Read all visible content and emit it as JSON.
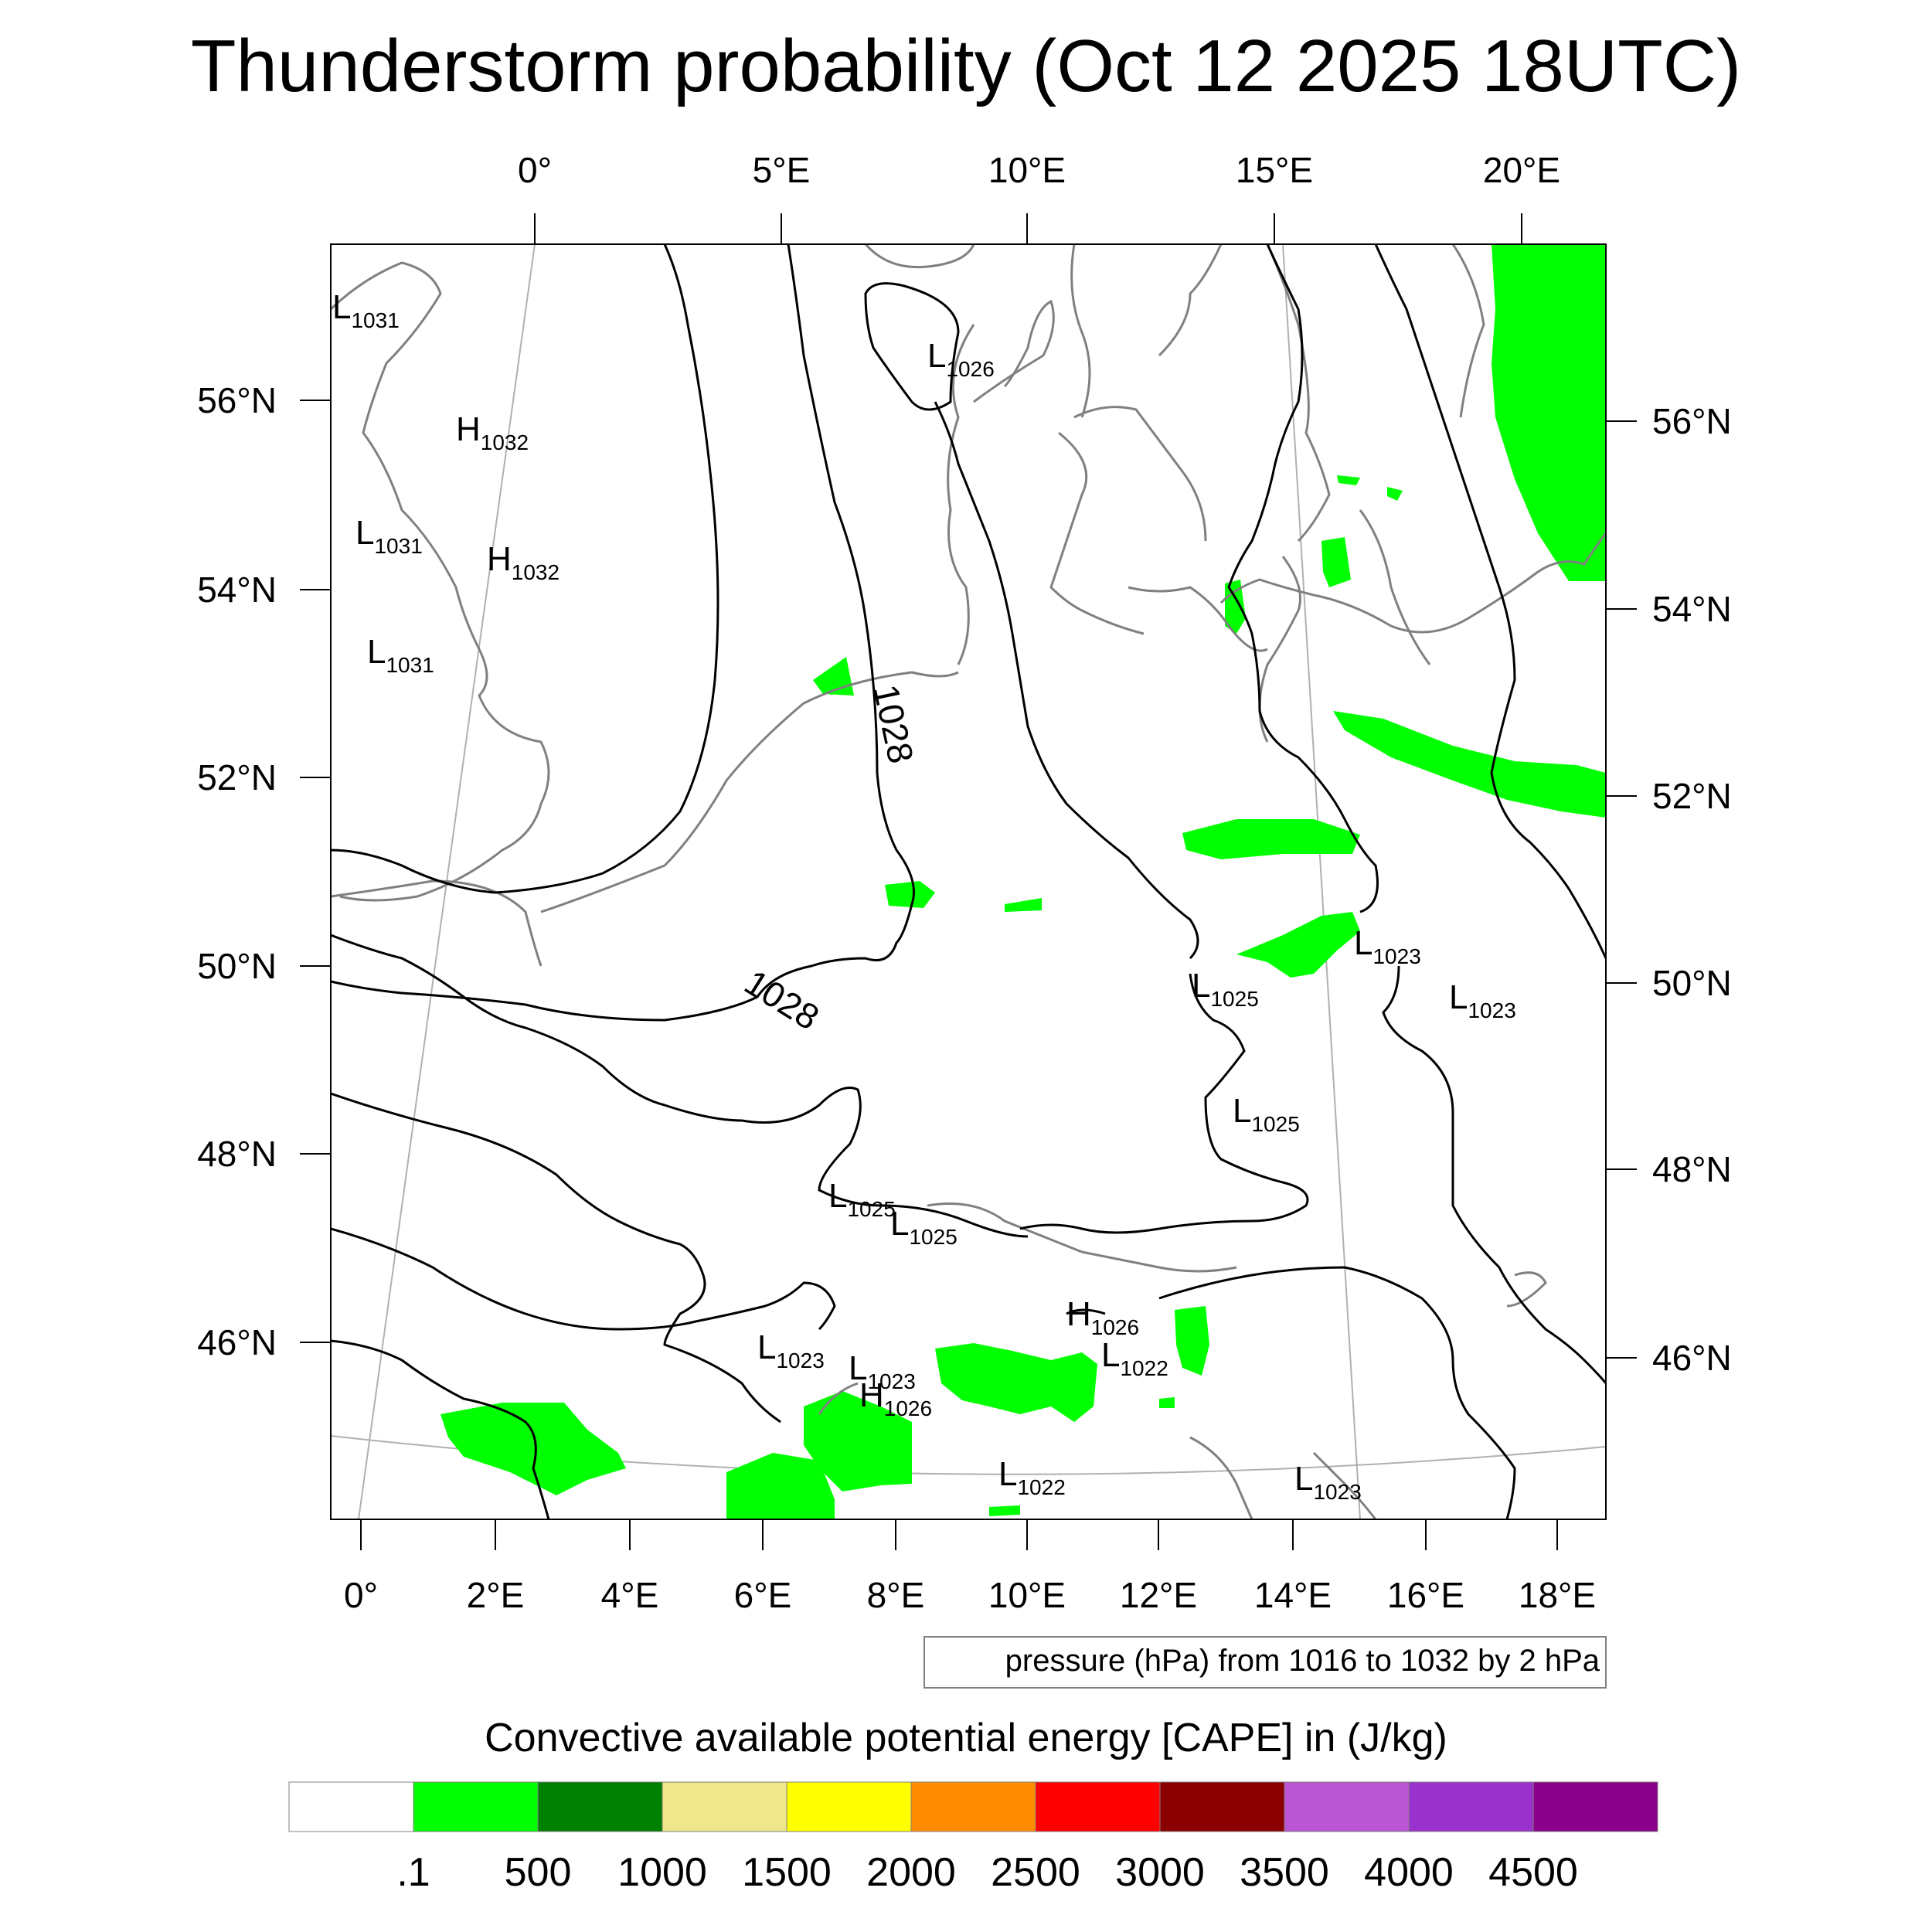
{
  "title": "Thunderstorm probability (Oct 12 2025 18UTC)",
  "map": {
    "top_lon_labels": [
      "0°",
      "5°E",
      "10°E",
      "15°E",
      "20°E"
    ],
    "bottom_lon_labels": [
      "0°",
      "2°E",
      "4°E",
      "6°E",
      "8°E",
      "10°E",
      "12°E",
      "14°E",
      "16°E",
      "18°E"
    ],
    "left_lat_labels": [
      "56°N",
      "54°N",
      "52°N",
      "50°N",
      "48°N",
      "46°N"
    ],
    "right_lat_labels": [
      "56°N",
      "54°N",
      "52°N",
      "50°N",
      "48°N",
      "46°N"
    ],
    "isobar_labels": [
      "1028",
      "1028"
    ],
    "pressure_centers": [
      {
        "kind": "L",
        "value": "1031"
      },
      {
        "kind": "H",
        "value": "1032"
      },
      {
        "kind": "L",
        "value": "1031"
      },
      {
        "kind": "H",
        "value": "1032"
      },
      {
        "kind": "L",
        "value": "1031"
      },
      {
        "kind": "L",
        "value": "1026"
      },
      {
        "kind": "L",
        "value": "1023"
      },
      {
        "kind": "L",
        "value": "1025"
      },
      {
        "kind": "L",
        "value": "1023"
      },
      {
        "kind": "L",
        "value": "1025"
      },
      {
        "kind": "L",
        "value": "1025"
      },
      {
        "kind": "L",
        "value": "1025"
      },
      {
        "kind": "H",
        "value": "1026"
      },
      {
        "kind": "L",
        "value": "1022"
      },
      {
        "kind": "L",
        "value": "1023"
      },
      {
        "kind": "L",
        "value": "1023"
      },
      {
        "kind": "H",
        "value": "1026"
      },
      {
        "kind": "L",
        "value": "1022"
      },
      {
        "kind": "L",
        "value": "1023"
      }
    ],
    "contour_note": "pressure (hPa) from 1016 to 1032 by 2 hPa"
  },
  "colorbar": {
    "title": "Convective available potential energy [CAPE] in (J/kg)",
    "colors": [
      "#ffffff",
      "#00ff00",
      "#008000",
      "#f0e68c",
      "#ffff00",
      "#ff8c00",
      "#ff0000",
      "#8b0000",
      "#ba55d3",
      "#9932cc",
      "#8b008b"
    ],
    "labels": [
      ".1",
      "500",
      "1000",
      "1500",
      "2000",
      "2500",
      "3000",
      "3500",
      "4000",
      "4500"
    ]
  },
  "colors": {
    "cape_fill": "#00ff00",
    "isobar": "#000000",
    "coastline": "#808080",
    "graticule": "#b0b0b0"
  }
}
